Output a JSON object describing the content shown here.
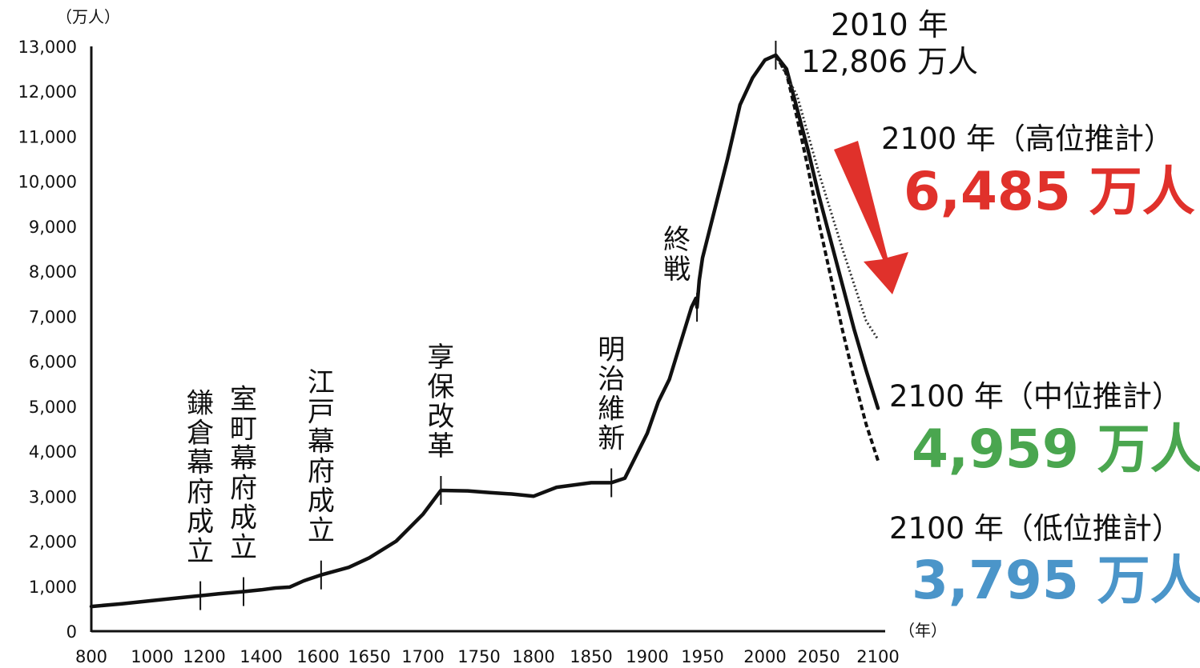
{
  "chart_data": {
    "type": "line",
    "ylabel_unit": "（万人）",
    "xlabel_unit": "（年）",
    "xlim": [
      800,
      2100
    ],
    "ylim": [
      0,
      13000
    ],
    "x_ticks": [
      "800",
      "1000",
      "1200",
      "1400",
      "1600",
      "1650",
      "1700",
      "1750",
      "1800",
      "1850",
      "1900",
      "1950",
      "2000",
      "2050",
      "2100"
    ],
    "y_ticks": [
      "0",
      "1,000",
      "2,000",
      "3,000",
      "4,000",
      "5,000",
      "6,000",
      "7,000",
      "8,000",
      "9,000",
      "10,000",
      "11,000",
      "12,000",
      "13,000"
    ],
    "series": [
      {
        "style": "solid",
        "color": "#111111",
        "points": [
          [
            800,
            550
          ],
          [
            900,
            610
          ],
          [
            1000,
            680
          ],
          [
            1100,
            740
          ],
          [
            1185,
            790
          ],
          [
            1250,
            830
          ],
          [
            1338,
            880
          ],
          [
            1400,
            920
          ],
          [
            1450,
            960
          ],
          [
            1500,
            980
          ],
          [
            1550,
            1120
          ],
          [
            1603,
            1250
          ],
          [
            1630,
            1420
          ],
          [
            1650,
            1630
          ],
          [
            1675,
            2000
          ],
          [
            1700,
            2600
          ],
          [
            1716,
            3130
          ],
          [
            1740,
            3120
          ],
          [
            1760,
            3080
          ],
          [
            1780,
            3050
          ],
          [
            1800,
            3000
          ],
          [
            1820,
            3200
          ],
          [
            1850,
            3300
          ],
          [
            1868,
            3300
          ],
          [
            1880,
            3400
          ],
          [
            1890,
            3900
          ],
          [
            1900,
            4400
          ],
          [
            1910,
            5100
          ],
          [
            1920,
            5600
          ],
          [
            1930,
            6400
          ],
          [
            1940,
            7200
          ],
          [
            1944,
            7400
          ],
          [
            1945,
            7200
          ],
          [
            1947,
            7800
          ],
          [
            1950,
            8300
          ],
          [
            1960,
            9400
          ],
          [
            1970,
            10500
          ],
          [
            1980,
            11700
          ],
          [
            1990,
            12300
          ],
          [
            2000,
            12700
          ],
          [
            2010,
            12806
          ],
          [
            2020,
            12500
          ],
          [
            2030,
            11600
          ],
          [
            2040,
            10700
          ],
          [
            2050,
            9700
          ],
          [
            2060,
            8700
          ],
          [
            2070,
            7700
          ],
          [
            2080,
            6700
          ],
          [
            2090,
            5800
          ],
          [
            2100,
            4959
          ]
        ]
      },
      {
        "style": "dotted",
        "color": "#333333",
        "points": [
          [
            2010,
            12806
          ],
          [
            2030,
            11900
          ],
          [
            2050,
            10200
          ],
          [
            2070,
            8500
          ],
          [
            2090,
            6900
          ],
          [
            2100,
            6485
          ]
        ]
      },
      {
        "style": "dashed",
        "color": "#111111",
        "points": [
          [
            2010,
            12806
          ],
          [
            2020,
            12400
          ],
          [
            2030,
            11400
          ],
          [
            2040,
            10300
          ],
          [
            2050,
            9100
          ],
          [
            2060,
            7900
          ],
          [
            2070,
            6700
          ],
          [
            2080,
            5600
          ],
          [
            2090,
            4600
          ],
          [
            2100,
            3795
          ]
        ]
      }
    ],
    "events": [
      {
        "label": "鎌倉幕府成立",
        "year": 1185,
        "value": 790
      },
      {
        "label": "室町幕府成立",
        "year": 1338,
        "value": 880
      },
      {
        "label": "江戸幕府成立",
        "year": 1603,
        "value": 1250
      },
      {
        "label": "享保改革",
        "year": 1716,
        "value": 3130
      },
      {
        "label": "明治維新",
        "year": 1868,
        "value": 3300
      },
      {
        "label": "終戦",
        "year": 1945,
        "value": 7200
      },
      {
        "label": "",
        "year": 2010,
        "value": 12806
      }
    ],
    "annotations": {
      "peak_year": "2010 年",
      "peak_value": "12,806 万人",
      "high_label": "2100 年（高位推計）",
      "high_value": "6,485 万人",
      "mid_label": "2100 年（中位推計）",
      "mid_value": "4,959 万人",
      "low_label": "2100 年（低位推計）",
      "low_value": "3,795 万人"
    },
    "colors": {
      "high": "#e0312b",
      "mid": "#4aa64f",
      "low": "#4b95c9",
      "arrow": "#e0312b"
    }
  }
}
